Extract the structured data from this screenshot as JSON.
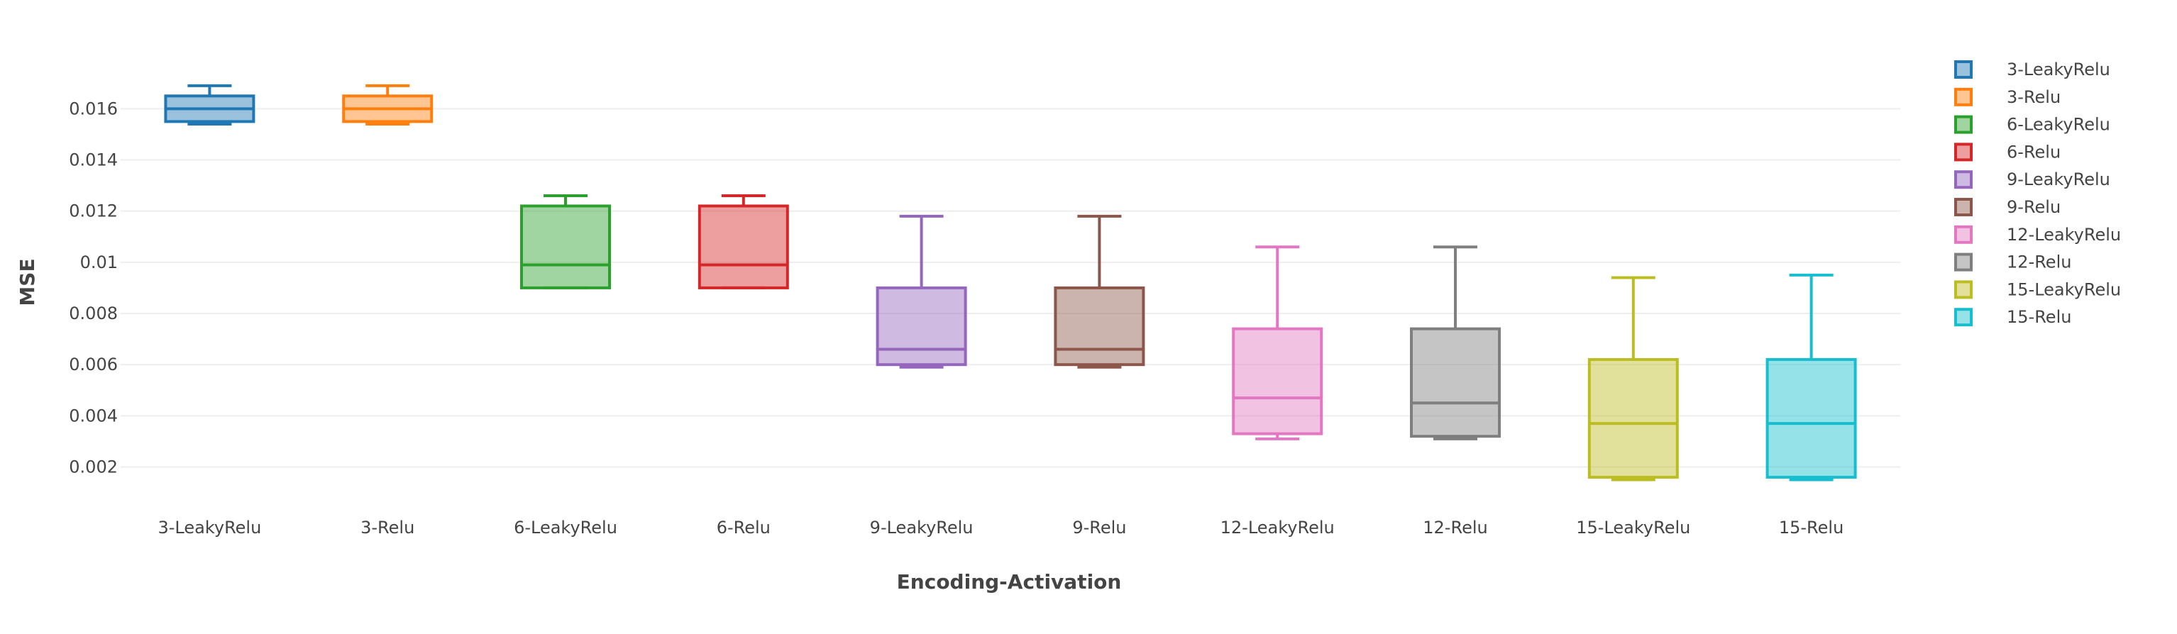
{
  "chart_data": {
    "type": "box",
    "xlabel": "Encoding-Activation",
    "ylabel": "MSE",
    "ylim": [
      0.00085,
      0.0177
    ],
    "yticks": [
      0.002,
      0.004,
      0.006,
      0.008,
      0.01,
      0.012,
      0.014,
      0.016
    ],
    "ytick_labels": [
      "0.002",
      "0.004",
      "0.006",
      "0.008",
      "0.01",
      "0.012",
      "0.014",
      "0.016"
    ],
    "grid": true,
    "legend_position": "right",
    "categories": [
      "3-LeakyRelu",
      "3-Relu",
      "6-LeakyRelu",
      "6-Relu",
      "9-LeakyRelu",
      "9-Relu",
      "12-LeakyRelu",
      "12-Relu",
      "15-LeakyRelu",
      "15-Relu"
    ],
    "series": [
      {
        "name": "3-LeakyRelu",
        "color": "#1f77b4",
        "min": 0.0154,
        "q1": 0.0155,
        "median": 0.016,
        "q3": 0.0165,
        "max": 0.0169
      },
      {
        "name": "3-Relu",
        "color": "#ff7f0e",
        "min": 0.0154,
        "q1": 0.0155,
        "median": 0.016,
        "q3": 0.0165,
        "max": 0.0169
      },
      {
        "name": "6-LeakyRelu",
        "color": "#2ca02c",
        "min": 0.009,
        "q1": 0.009,
        "median": 0.0099,
        "q3": 0.0122,
        "max": 0.0126
      },
      {
        "name": "6-Relu",
        "color": "#d62728",
        "min": 0.009,
        "q1": 0.009,
        "median": 0.0099,
        "q3": 0.0122,
        "max": 0.0126
      },
      {
        "name": "9-LeakyRelu",
        "color": "#9467bd",
        "min": 0.0059,
        "q1": 0.006,
        "median": 0.0066,
        "q3": 0.009,
        "max": 0.0118
      },
      {
        "name": "9-Relu",
        "color": "#8c564b",
        "min": 0.0059,
        "q1": 0.006,
        "median": 0.0066,
        "q3": 0.009,
        "max": 0.0118
      },
      {
        "name": "12-LeakyRelu",
        "color": "#e377c2",
        "min": 0.0031,
        "q1": 0.0033,
        "median": 0.0047,
        "q3": 0.0074,
        "max": 0.0106
      },
      {
        "name": "12-Relu",
        "color": "#7f7f7f",
        "min": 0.0031,
        "q1": 0.0032,
        "median": 0.0045,
        "q3": 0.0074,
        "max": 0.0106
      },
      {
        "name": "15-LeakyRelu",
        "color": "#bcbd22",
        "min": 0.0015,
        "q1": 0.0016,
        "median": 0.0037,
        "q3": 0.0062,
        "max": 0.0094
      },
      {
        "name": "15-Relu",
        "color": "#17becf",
        "min": 0.0015,
        "q1": 0.0016,
        "median": 0.0037,
        "q3": 0.0062,
        "max": 0.0095
      }
    ]
  }
}
